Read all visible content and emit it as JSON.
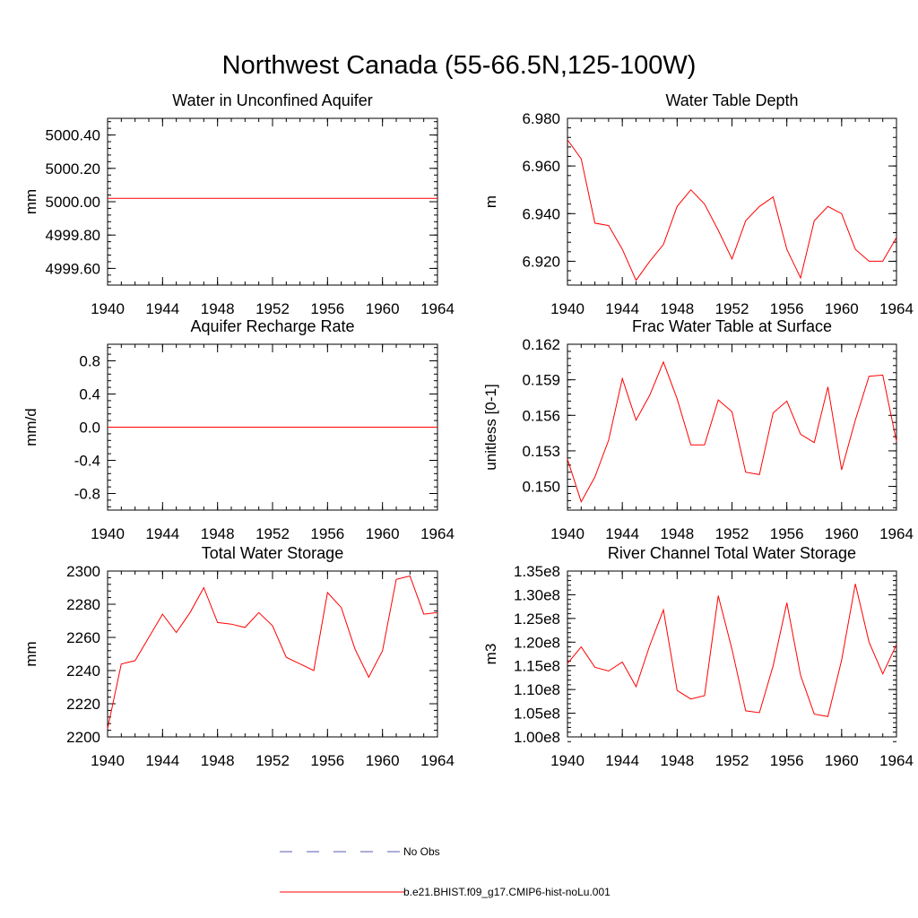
{
  "figure_title": "Northwest Canada (55-66.5N,125-100W)",
  "legend": [
    {
      "label": "No Obs",
      "style": "dashed",
      "color": "#5a5ab4"
    },
    {
      "label": "b.e21.BHIST.f09_g17.CMIP6-hist-noLu.001",
      "style": "solid",
      "color": "#ff0000"
    }
  ],
  "chart_data": [
    {
      "type": "line",
      "title": "Water in Unconfined Aquifer",
      "ylabel": "mm",
      "xlim": [
        1940,
        1964
      ],
      "ylim": [
        4999.5,
        5000.5
      ],
      "x_ticks": [
        1940,
        1944,
        1948,
        1952,
        1956,
        1960,
        1964
      ],
      "x_tick_labels": [
        "1940",
        "1944",
        "1948",
        "1952",
        "1956",
        "1960",
        "1964"
      ],
      "y_ticks": [
        4999.6,
        4999.8,
        5000.0,
        5000.2,
        5000.4
      ],
      "y_tick_labels": [
        "4999.60",
        "4999.80",
        "5000.00",
        "5000.20",
        "5000.40"
      ],
      "series": [
        {
          "name": "b.e21.BHIST.f09_g17.CMIP6-hist-noLu.001",
          "x": [
            1940,
            1941,
            1942,
            1943,
            1944,
            1945,
            1946,
            1947,
            1948,
            1949,
            1950,
            1951,
            1952,
            1953,
            1954,
            1955,
            1956,
            1957,
            1958,
            1959,
            1960,
            1961,
            1962,
            1963,
            1964
          ],
          "values": [
            5000.02,
            5000.02,
            5000.02,
            5000.02,
            5000.02,
            5000.02,
            5000.02,
            5000.02,
            5000.02,
            5000.02,
            5000.02,
            5000.02,
            5000.02,
            5000.02,
            5000.02,
            5000.02,
            5000.02,
            5000.02,
            5000.02,
            5000.02,
            5000.02,
            5000.02,
            5000.02,
            5000.02,
            5000.02
          ]
        }
      ]
    },
    {
      "type": "line",
      "title": "Water Table Depth",
      "ylabel": "m",
      "xlim": [
        1940,
        1964
      ],
      "ylim": [
        6.91,
        6.98
      ],
      "x_ticks": [
        1940,
        1944,
        1948,
        1952,
        1956,
        1960,
        1964
      ],
      "x_tick_labels": [
        "1940",
        "1944",
        "1948",
        "1952",
        "1956",
        "1960",
        "1964"
      ],
      "y_ticks": [
        6.92,
        6.94,
        6.96,
        6.98
      ],
      "y_tick_labels": [
        "6.920",
        "6.940",
        "6.960",
        "6.980"
      ],
      "series": [
        {
          "name": "b.e21.BHIST.f09_g17.CMIP6-hist-noLu.001",
          "x": [
            1940,
            1941,
            1942,
            1943,
            1944,
            1945,
            1946,
            1947,
            1948,
            1949,
            1950,
            1951,
            1952,
            1953,
            1954,
            1955,
            1956,
            1957,
            1958,
            1959,
            1960,
            1961,
            1962,
            1963,
            1964
          ],
          "values": [
            6.971,
            6.963,
            6.936,
            6.935,
            6.925,
            6.912,
            6.92,
            6.927,
            6.943,
            6.95,
            6.944,
            6.933,
            6.921,
            6.937,
            6.943,
            6.947,
            6.925,
            6.913,
            6.937,
            6.943,
            6.94,
            6.925,
            6.92,
            6.92,
            6.93
          ]
        }
      ]
    },
    {
      "type": "line",
      "title": "Aquifer Recharge Rate",
      "ylabel": "mm/d",
      "xlim": [
        1940,
        1964
      ],
      "ylim": [
        -1.0,
        1.0
      ],
      "x_ticks": [
        1940,
        1944,
        1948,
        1952,
        1956,
        1960,
        1964
      ],
      "x_tick_labels": [
        "1940",
        "1944",
        "1948",
        "1952",
        "1956",
        "1960",
        "1964"
      ],
      "y_ticks": [
        -0.8,
        -0.4,
        0.0,
        0.4,
        0.8
      ],
      "y_tick_labels": [
        "-0.8",
        "-0.4",
        "0.0",
        "0.4",
        "0.8"
      ],
      "series": [
        {
          "name": "b.e21.BHIST.f09_g17.CMIP6-hist-noLu.001",
          "x": [
            1940,
            1941,
            1942,
            1943,
            1944,
            1945,
            1946,
            1947,
            1948,
            1949,
            1950,
            1951,
            1952,
            1953,
            1954,
            1955,
            1956,
            1957,
            1958,
            1959,
            1960,
            1961,
            1962,
            1963,
            1964
          ],
          "values": [
            0,
            0,
            0,
            0,
            0,
            0,
            0,
            0,
            0,
            0,
            0,
            0,
            0,
            0,
            0,
            0,
            0,
            0,
            0,
            0,
            0,
            0,
            0,
            0,
            0
          ]
        }
      ]
    },
    {
      "type": "line",
      "title": "Frac Water Table at Surface",
      "ylabel": "unitless [0-1]",
      "xlim": [
        1940,
        1964
      ],
      "ylim": [
        0.148,
        0.162
      ],
      "x_ticks": [
        1940,
        1944,
        1948,
        1952,
        1956,
        1960,
        1964
      ],
      "x_tick_labels": [
        "1940",
        "1944",
        "1948",
        "1952",
        "1956",
        "1960",
        "1964"
      ],
      "y_ticks": [
        0.15,
        0.153,
        0.156,
        0.159,
        0.162
      ],
      "y_tick_labels": [
        "0.150",
        "0.153",
        "0.156",
        "0.159",
        "0.162"
      ],
      "series": [
        {
          "name": "b.e21.BHIST.f09_g17.CMIP6-hist-noLu.001",
          "x": [
            1940,
            1941,
            1942,
            1943,
            1944,
            1945,
            1946,
            1947,
            1948,
            1949,
            1950,
            1951,
            1952,
            1953,
            1954,
            1955,
            1956,
            1957,
            1958,
            1959,
            1960,
            1961,
            1962,
            1963,
            1964
          ],
          "values": [
            0.1523,
            0.1487,
            0.1508,
            0.1539,
            0.1591,
            0.1556,
            0.1577,
            0.1605,
            0.1574,
            0.1535,
            0.1535,
            0.1573,
            0.1563,
            0.1512,
            0.151,
            0.1562,
            0.1572,
            0.1544,
            0.1537,
            0.1584,
            0.1514,
            0.1556,
            0.1593,
            0.1594,
            0.1538
          ]
        }
      ]
    },
    {
      "type": "line",
      "title": "Total Water Storage",
      "ylabel": "mm",
      "xlim": [
        1940,
        1964
      ],
      "ylim": [
        2200,
        2300
      ],
      "x_ticks": [
        1940,
        1944,
        1948,
        1952,
        1956,
        1960,
        1964
      ],
      "x_tick_labels": [
        "1940",
        "1944",
        "1948",
        "1952",
        "1956",
        "1960",
        "1964"
      ],
      "y_ticks": [
        2200,
        2220,
        2240,
        2260,
        2280,
        2300
      ],
      "y_tick_labels": [
        "2200",
        "2220",
        "2240",
        "2260",
        "2280",
        "2300"
      ],
      "series": [
        {
          "name": "b.e21.BHIST.f09_g17.CMIP6-hist-noLu.001",
          "x": [
            1940,
            1941,
            1942,
            1943,
            1944,
            1945,
            1946,
            1947,
            1948,
            1949,
            1950,
            1951,
            1952,
            1953,
            1954,
            1955,
            1956,
            1957,
            1958,
            1959,
            1960,
            1961,
            1962,
            1963,
            1964
          ],
          "values": [
            2205,
            2244,
            2246,
            2260,
            2274,
            2263,
            2275,
            2290,
            2269,
            2268,
            2266,
            2275,
            2267,
            2248,
            2244,
            2240,
            2287,
            2278,
            2253,
            2236,
            2252,
            2295,
            2297,
            2274,
            2275
          ]
        }
      ]
    },
    {
      "type": "line",
      "title": "River Channel Total Water Storage",
      "ylabel": "m3",
      "xlim": [
        1940,
        1964
      ],
      "ylim": [
        100000000.0,
        135000000.0
      ],
      "x_ticks": [
        1940,
        1944,
        1948,
        1952,
        1956,
        1960,
        1964
      ],
      "x_tick_labels": [
        "1940",
        "1944",
        "1948",
        "1952",
        "1956",
        "1960",
        "1964"
      ],
      "y_ticks": [
        100000000.0,
        105000000.0,
        110000000.0,
        115000000.0,
        120000000.0,
        125000000.0,
        130000000.0,
        135000000.0
      ],
      "y_tick_labels": [
        "1.00e8",
        "1.05e8",
        "1.10e8",
        "1.15e8",
        "1.20e8",
        "1.25e8",
        "1.30e8",
        "1.35e8"
      ],
      "series": [
        {
          "name": "b.e21.BHIST.f09_g17.CMIP6-hist-noLu.001",
          "x": [
            1940,
            1941,
            1942,
            1943,
            1944,
            1945,
            1946,
            1947,
            1948,
            1949,
            1950,
            1951,
            1952,
            1953,
            1954,
            1955,
            1956,
            1957,
            1958,
            1959,
            1960,
            1961,
            1962,
            1963,
            1964
          ],
          "values": [
            115500000.0,
            119000000.0,
            114700000.0,
            113900000.0,
            115800000.0,
            110600000.0,
            119300000.0,
            126800000.0,
            109800000.0,
            108000000.0,
            108700000.0,
            129800000.0,
            118500000.0,
            105500000.0,
            105100000.0,
            115000000.0,
            128300000.0,
            113000000.0,
            104800000.0,
            104300000.0,
            116200000.0,
            132300000.0,
            120000000.0,
            113300000.0,
            119500000.0
          ]
        }
      ]
    }
  ]
}
